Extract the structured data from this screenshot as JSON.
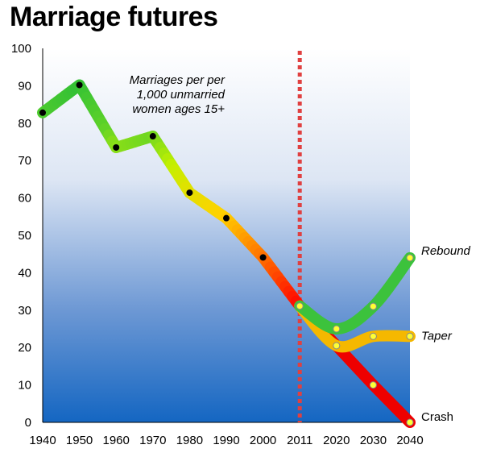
{
  "chart_data": {
    "type": "line",
    "title": "Marriage futures",
    "annotation": [
      "Marriages per per",
      "1,000 unmarried",
      "women ages 15+"
    ],
    "ylim": [
      0,
      100
    ],
    "y_ticks": [
      0,
      10,
      20,
      30,
      40,
      50,
      60,
      70,
      80,
      90,
      100
    ],
    "x_categories": [
      "1940",
      "1950",
      "1960",
      "1970",
      "1980",
      "1990",
      "2000",
      "2011",
      "2020",
      "2030",
      "2040"
    ],
    "divider_at": "2011",
    "historical": {
      "x": [
        "1940",
        "1950",
        "1960",
        "1970",
        "1980",
        "1990",
        "2000",
        "2011"
      ],
      "values": [
        82.8,
        90.2,
        73.5,
        76.5,
        61.4,
        54.6,
        44.1,
        31.1
      ]
    },
    "scenarios": [
      {
        "name": "Rebound",
        "color": "#3cc23c",
        "x": [
          "2011",
          "2020",
          "2030",
          "2040"
        ],
        "values": [
          31.1,
          25.0,
          31.0,
          44.0
        ]
      },
      {
        "name": "Taper",
        "color": "#f5b800",
        "x": [
          "2011",
          "2020",
          "2030",
          "2040"
        ],
        "values": [
          31.1,
          20.5,
          23.0,
          23.0
        ]
      },
      {
        "name": "Crash",
        "color": "#ee0000",
        "x": [
          "2011",
          "2020",
          "2030",
          "2040"
        ],
        "values": [
          31.1,
          20.5,
          10.0,
          0.0
        ]
      }
    ],
    "legend": "none",
    "grid": false
  }
}
